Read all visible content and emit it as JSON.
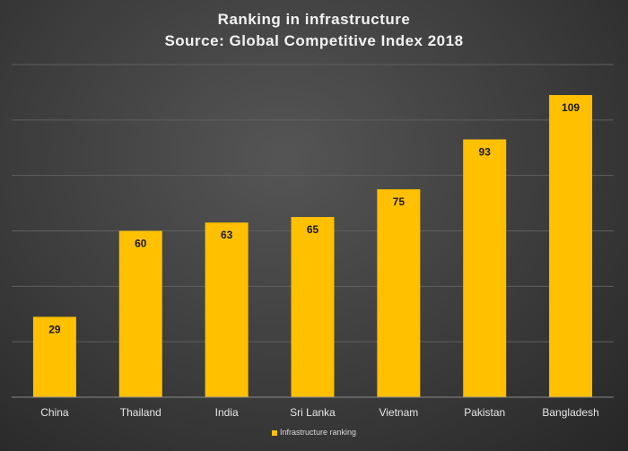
{
  "chart_data": {
    "type": "bar",
    "title": "Ranking  in infrastructure",
    "subtitle": "Source: Global  Competitive  Index 2018",
    "categories": [
      "China",
      "Thailand",
      "India",
      "Sri Lanka",
      "Vietnam",
      "Pakistan",
      "Bangladesh"
    ],
    "series": [
      {
        "name": "Infrastructure ranking",
        "values": [
          29,
          60,
          63,
          65,
          75,
          93,
          109
        ],
        "color": "#ffc000"
      }
    ],
    "ylim": [
      0,
      120
    ],
    "ytick_step": 20,
    "grid": true,
    "data_labels": true,
    "legend": "bottom"
  }
}
